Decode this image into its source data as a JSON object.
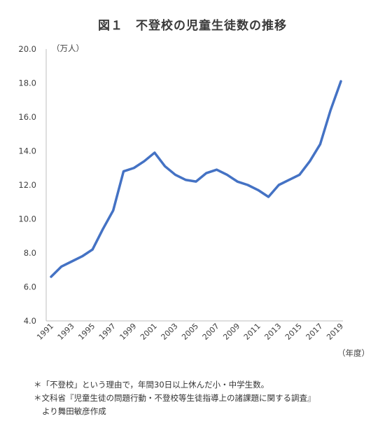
{
  "title": {
    "figure_label": "図１",
    "text": "不登校の児童生徒数の推移"
  },
  "chart_data": {
    "type": "line",
    "title": "不登校の児童生徒数の推移",
    "xlabel": "（年度）",
    "ylabel": "（万人）",
    "ylim": [
      4.0,
      20.0
    ],
    "yticks": [
      "4.0",
      "6.0",
      "8.0",
      "10.0",
      "12.0",
      "14.0",
      "16.0",
      "18.0",
      "20.0"
    ],
    "xtick_labels": [
      "1991",
      "1993",
      "1995",
      "1997",
      "1999",
      "2001",
      "2003",
      "2005",
      "2007",
      "2009",
      "2011",
      "2013",
      "2015",
      "2017",
      "2019"
    ],
    "grid": false,
    "legend": "none",
    "line_color": "#4472C4",
    "x": [
      1991,
      1992,
      1993,
      1994,
      1995,
      1996,
      1997,
      1998,
      1999,
      2000,
      2001,
      2002,
      2003,
      2004,
      2005,
      2006,
      2007,
      2008,
      2009,
      2010,
      2011,
      2012,
      2013,
      2014,
      2015,
      2016,
      2017,
      2018,
      2019
    ],
    "series": [
      {
        "values": [
          6.6,
          7.2,
          7.5,
          7.8,
          8.2,
          9.4,
          10.5,
          12.8,
          13.0,
          13.4,
          13.9,
          13.1,
          12.6,
          12.3,
          12.2,
          12.7,
          12.9,
          12.6,
          12.2,
          12.0,
          11.7,
          11.3,
          12.0,
          12.3,
          12.6,
          13.4,
          14.4,
          16.4,
          18.1
        ]
      }
    ]
  },
  "notes": [
    "＊「不登校」という理由で，年間30日以上休んだ小・中学生数。",
    "＊文科省『児童生徒の問題行動・不登校等生徒指導上の諸課題に関する調査』",
    "より舞田敏彦作成"
  ]
}
